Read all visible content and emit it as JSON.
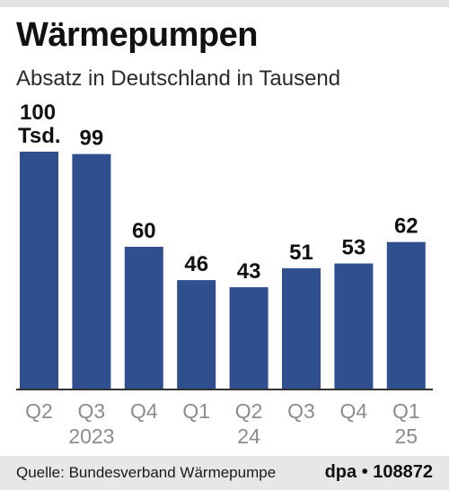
{
  "title": "Wärmepumpen",
  "subtitle": "Absatz in Deutschland in Tausend",
  "source": "Quelle: Bundesverband Wärmepumpe",
  "credit": "dpa • 108872",
  "colors": {
    "bar": "#2f4f8f",
    "axis": "#333333",
    "tick_label": "#8c8c8c",
    "value_label": "#111111"
  },
  "chart_data": {
    "type": "bar",
    "categories": [
      "Q2",
      "Q3",
      "Q4",
      "Q1",
      "Q2",
      "Q3",
      "Q4",
      "Q1"
    ],
    "year_labels": [
      "",
      "2023",
      "",
      "",
      "24",
      "",
      "",
      "25"
    ],
    "values": [
      100,
      99,
      60,
      46,
      43,
      51,
      53,
      62
    ],
    "value_labels": [
      "100",
      "99",
      "60",
      "46",
      "43",
      "51",
      "53",
      "62"
    ],
    "first_label_unit": "Tsd.",
    "ylim": [
      0,
      100
    ],
    "grid": false,
    "legend": "none"
  }
}
